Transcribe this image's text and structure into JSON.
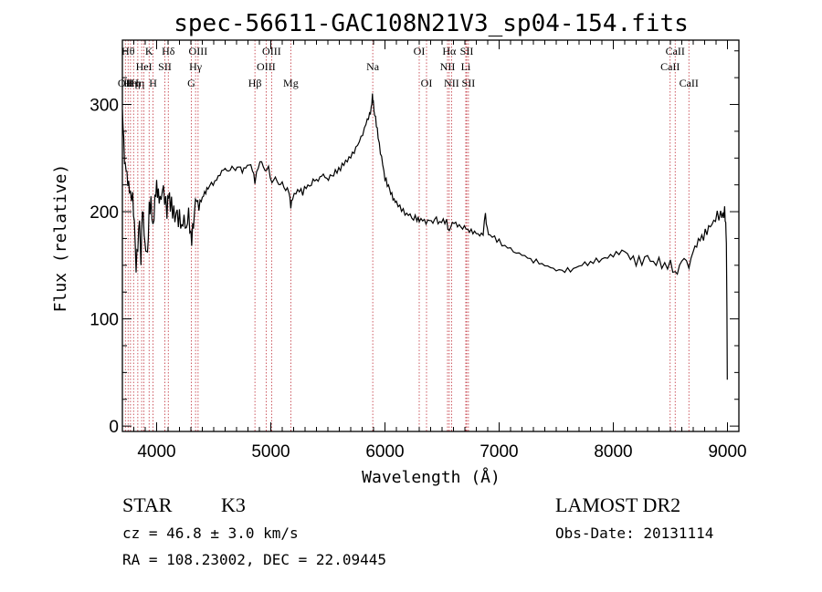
{
  "chart_data": {
    "type": "line",
    "title": "spec-56611-GAC108N21V3_sp04-154.fits",
    "xlabel": "Wavelength (Å)",
    "ylabel": "Flux (relative)",
    "xlim": [
      3700,
      9100
    ],
    "ylim": [
      -5,
      360
    ],
    "xticks": [
      4000,
      5000,
      6000,
      7000,
      8000,
      9000
    ],
    "yticks": [
      0,
      100,
      200,
      300
    ],
    "grid": false,
    "series": [
      {
        "color": "#000000",
        "points": [
          [
            3700,
            295
          ],
          [
            3712,
            260
          ],
          [
            3725,
            245
          ],
          [
            3740,
            232
          ],
          [
            3755,
            225
          ],
          [
            3770,
            215
          ],
          [
            3790,
            212
          ],
          [
            3805,
            190
          ],
          [
            3820,
            150
          ],
          [
            3835,
            168
          ],
          [
            3850,
            192
          ],
          [
            3862,
            152
          ],
          [
            3875,
            208
          ],
          [
            3890,
            178
          ],
          [
            3905,
            165
          ],
          [
            3920,
            158
          ],
          [
            3935,
            200
          ],
          [
            3950,
            210
          ],
          [
            3968,
            182
          ],
          [
            3985,
            212
          ],
          [
            4000,
            222
          ],
          [
            4015,
            216
          ],
          [
            4030,
            208
          ],
          [
            4050,
            225
          ],
          [
            4070,
            215
          ],
          [
            4090,
            200
          ],
          [
            4105,
            218
          ],
          [
            4120,
            210
          ],
          [
            4140,
            202
          ],
          [
            4160,
            196
          ],
          [
            4180,
            192
          ],
          [
            4200,
            195
          ],
          [
            4220,
            185
          ],
          [
            4240,
            193
          ],
          [
            4260,
            183
          ],
          [
            4280,
            198
          ],
          [
            4300,
            172
          ],
          [
            4315,
            180
          ],
          [
            4330,
            203
          ],
          [
            4350,
            212
          ],
          [
            4370,
            205
          ],
          [
            4390,
            210
          ],
          [
            4410,
            216
          ],
          [
            4430,
            219
          ],
          [
            4450,
            222
          ],
          [
            4480,
            225
          ],
          [
            4510,
            228
          ],
          [
            4540,
            232
          ],
          [
            4570,
            238
          ],
          [
            4600,
            240
          ],
          [
            4630,
            237
          ],
          [
            4660,
            242
          ],
          [
            4690,
            239
          ],
          [
            4720,
            243
          ],
          [
            4750,
            238
          ],
          [
            4780,
            241
          ],
          [
            4810,
            245
          ],
          [
            4840,
            240
          ],
          [
            4861,
            228
          ],
          [
            4890,
            243
          ],
          [
            4920,
            246
          ],
          [
            4950,
            238
          ],
          [
            4980,
            240
          ],
          [
            5010,
            227
          ],
          [
            5040,
            232
          ],
          [
            5070,
            225
          ],
          [
            5100,
            226
          ],
          [
            5130,
            222
          ],
          [
            5160,
            219
          ],
          [
            5175,
            205
          ],
          [
            5190,
            213
          ],
          [
            5220,
            218
          ],
          [
            5250,
            221
          ],
          [
            5280,
            218
          ],
          [
            5310,
            224
          ],
          [
            5340,
            222
          ],
          [
            5370,
            230
          ],
          [
            5400,
            228
          ],
          [
            5430,
            232
          ],
          [
            5460,
            235
          ],
          [
            5490,
            229
          ],
          [
            5520,
            233
          ],
          [
            5550,
            236
          ],
          [
            5580,
            238
          ],
          [
            5610,
            241
          ],
          [
            5640,
            245
          ],
          [
            5670,
            248
          ],
          [
            5700,
            252
          ],
          [
            5730,
            256
          ],
          [
            5760,
            262
          ],
          [
            5790,
            268
          ],
          [
            5820,
            278
          ],
          [
            5845,
            285
          ],
          [
            5865,
            290
          ],
          [
            5880,
            296
          ],
          [
            5890,
            308
          ],
          [
            5898,
            300
          ],
          [
            5910,
            292
          ],
          [
            5925,
            282
          ],
          [
            5940,
            270
          ],
          [
            5960,
            256
          ],
          [
            5980,
            244
          ],
          [
            6000,
            232
          ],
          [
            6020,
            226
          ],
          [
            6040,
            220
          ],
          [
            6060,
            215
          ],
          [
            6080,
            211
          ],
          [
            6100,
            208
          ],
          [
            6130,
            204
          ],
          [
            6160,
            200
          ],
          [
            6190,
            198
          ],
          [
            6220,
            196
          ],
          [
            6250,
            195
          ],
          [
            6280,
            194
          ],
          [
            6300,
            192
          ],
          [
            6330,
            193
          ],
          [
            6360,
            190
          ],
          [
            6390,
            192
          ],
          [
            6420,
            191
          ],
          [
            6450,
            192
          ],
          [
            6480,
            190
          ],
          [
            6510,
            191
          ],
          [
            6540,
            190
          ],
          [
            6563,
            182
          ],
          [
            6590,
            190
          ],
          [
            6620,
            188
          ],
          [
            6650,
            187
          ],
          [
            6680,
            186
          ],
          [
            6710,
            184
          ],
          [
            6740,
            183
          ],
          [
            6770,
            181
          ],
          [
            6800,
            180
          ],
          [
            6830,
            178
          ],
          [
            6860,
            181
          ],
          [
            6880,
            197
          ],
          [
            6895,
            183
          ],
          [
            6920,
            178
          ],
          [
            6960,
            175
          ],
          [
            7000,
            172
          ],
          [
            7050,
            168
          ],
          [
            7100,
            165
          ],
          [
            7150,
            162
          ],
          [
            7200,
            160
          ],
          [
            7250,
            157
          ],
          [
            7300,
            155
          ],
          [
            7350,
            152
          ],
          [
            7400,
            150
          ],
          [
            7450,
            148
          ],
          [
            7500,
            146
          ],
          [
            7550,
            144
          ],
          [
            7600,
            145
          ],
          [
            7650,
            147
          ],
          [
            7700,
            149
          ],
          [
            7750,
            151
          ],
          [
            7800,
            152
          ],
          [
            7850,
            154
          ],
          [
            7900,
            156
          ],
          [
            7950,
            158
          ],
          [
            8000,
            160
          ],
          [
            8050,
            162
          ],
          [
            8100,
            163
          ],
          [
            8150,
            158
          ],
          [
            8200,
            155
          ],
          [
            8250,
            153
          ],
          [
            8300,
            158
          ],
          [
            8350,
            151
          ],
          [
            8400,
            153
          ],
          [
            8450,
            148
          ],
          [
            8500,
            152
          ],
          [
            8542,
            140
          ],
          [
            8580,
            150
          ],
          [
            8620,
            158
          ],
          [
            8662,
            148
          ],
          [
            8700,
            164
          ],
          [
            8730,
            170
          ],
          [
            8760,
            175
          ],
          [
            8790,
            178
          ],
          [
            8820,
            182
          ],
          [
            8850,
            186
          ],
          [
            8880,
            190
          ],
          [
            8910,
            195
          ],
          [
            8940,
            198
          ],
          [
            8960,
            195
          ],
          [
            8975,
            200
          ],
          [
            8985,
            190
          ],
          [
            8990,
            170
          ],
          [
            8995,
            110
          ],
          [
            8998,
            45
          ]
        ]
      }
    ],
    "lines": [
      {
        "wl": 3726,
        "label": "OII",
        "row": 3
      },
      {
        "wl": 3750,
        "label": "Hθ",
        "row": 1
      },
      {
        "wl": 3771,
        "label": "Hη",
        "row": 3
      },
      {
        "wl": 3798,
        "label": "Hη",
        "row": 3
      },
      {
        "wl": 3835,
        "label": "Hη",
        "row": 3
      },
      {
        "wl": 3869,
        "label": "",
        "row": 0
      },
      {
        "wl": 3889,
        "label": "HeI",
        "row": 2
      },
      {
        "wl": 3934,
        "label": "K",
        "row": 1
      },
      {
        "wl": 3969,
        "label": "H",
        "row": 3
      },
      {
        "wl": 4072,
        "label": "SII",
        "row": 2
      },
      {
        "wl": 4102,
        "label": "Hδ",
        "row": 1
      },
      {
        "wl": 4304,
        "label": "G",
        "row": 3
      },
      {
        "wl": 4341,
        "label": "Hγ",
        "row": 2
      },
      {
        "wl": 4363,
        "label": "OIII",
        "row": 1
      },
      {
        "wl": 4861,
        "label": "Hβ",
        "row": 3
      },
      {
        "wl": 4959,
        "label": "OIII",
        "row": 2
      },
      {
        "wl": 5007,
        "label": "OIII",
        "row": 1
      },
      {
        "wl": 5175,
        "label": "Mg",
        "row": 3
      },
      {
        "wl": 5893,
        "label": "Na",
        "row": 2
      },
      {
        "wl": 6300,
        "label": "OI",
        "row": 1
      },
      {
        "wl": 6364,
        "label": "OI",
        "row": 3
      },
      {
        "wl": 6548,
        "label": "NII",
        "row": 2
      },
      {
        "wl": 6563,
        "label": "Hα",
        "row": 1
      },
      {
        "wl": 6583,
        "label": "NII",
        "row": 3
      },
      {
        "wl": 6708,
        "label": "Li",
        "row": 2
      },
      {
        "wl": 6716,
        "label": "SII",
        "row": 1
      },
      {
        "wl": 6731,
        "label": "SII",
        "row": 3
      },
      {
        "wl": 8498,
        "label": "CaII",
        "row": 2
      },
      {
        "wl": 8542,
        "label": "CaII",
        "row": 1
      },
      {
        "wl": 8662,
        "label": "CaII",
        "row": 3
      }
    ],
    "line_color": "#c0303a"
  },
  "info": {
    "class": "STAR",
    "subclass": "K3",
    "survey": "LAMOST DR2",
    "redshift": "cz = 46.8 ± 3.0 km/s",
    "obs_date": "Obs-Date: 20131114",
    "coords": "RA = 108.23002, DEC =  22.09445"
  }
}
